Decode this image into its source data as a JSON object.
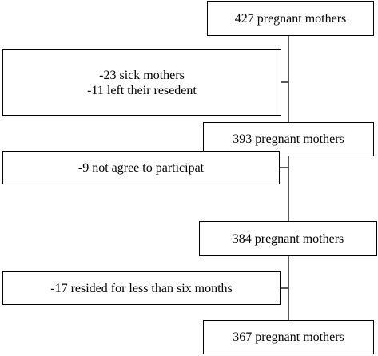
{
  "flowchart": {
    "steps": [
      {
        "text": "427 pregnant mothers"
      },
      {
        "text": "393 pregnant mothers"
      },
      {
        "text": "384 pregnant mothers"
      },
      {
        "text": "367 pregnant mothers"
      }
    ],
    "exclusions": [
      {
        "lines": [
          "-23 sick mothers",
          "-11 left their resedent"
        ]
      },
      {
        "lines": [
          "-9 not agree to participat"
        ]
      },
      {
        "lines": [
          "-17 resided for less than six months"
        ]
      }
    ]
  },
  "colors": {
    "line": "#000000",
    "border": "#000000",
    "background": "#ffffff"
  }
}
